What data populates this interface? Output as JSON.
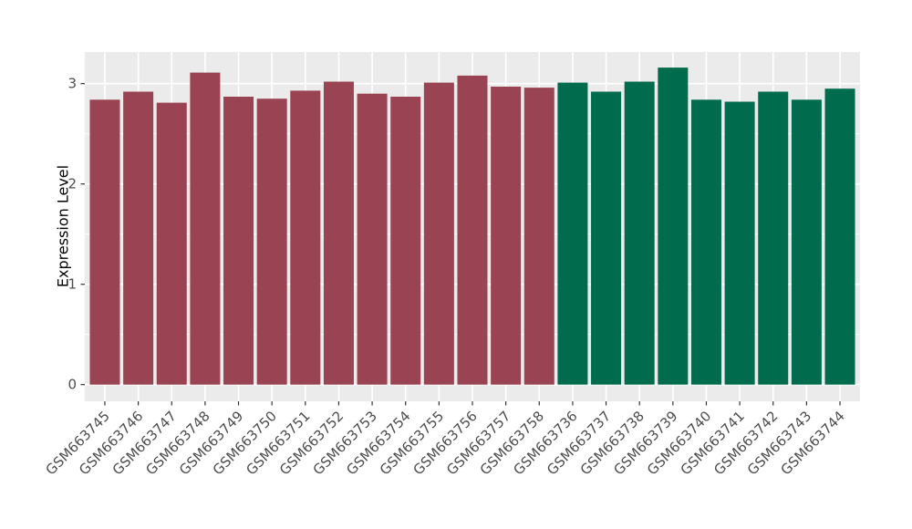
{
  "chart_data": {
    "type": "bar",
    "title": "",
    "xlabel": "",
    "ylabel": "Expression Level",
    "legend": "none",
    "panel_background": "#EBEBEB",
    "grid_color": "#FFFFFF",
    "grid": "on",
    "axis_text_color": "#4D4D4D",
    "tick_color": "#333333",
    "y_ticks": [
      "0",
      "1",
      "2",
      "3"
    ],
    "y_minor_ticks": [
      0.5,
      1.5,
      2.5
    ],
    "ylim": [
      -0.17,
      3.32
    ],
    "x_label_angle": 45,
    "categories": [
      "GSM663745",
      "GSM663746",
      "GSM663747",
      "GSM663748",
      "GSM663749",
      "GSM663750",
      "GSM663751",
      "GSM663752",
      "GSM663753",
      "GSM663754",
      "GSM663755",
      "GSM663756",
      "GSM663757",
      "GSM663758",
      "GSM663736",
      "GSM663737",
      "GSM663738",
      "GSM663739",
      "GSM663740",
      "GSM663741",
      "GSM663742",
      "GSM663743",
      "GSM663744"
    ],
    "values": [
      2.84,
      2.92,
      2.81,
      3.11,
      2.87,
      2.85,
      2.93,
      3.02,
      2.9,
      2.87,
      3.01,
      3.08,
      2.97,
      2.96,
      3.01,
      2.92,
      3.02,
      3.16,
      2.84,
      2.82,
      2.92,
      2.84,
      2.95
    ],
    "groups": [
      {
        "name": "GSM663745-GSM663758",
        "color": "#9A4352",
        "count": 14
      },
      {
        "name": "GSM663736-GSM663744",
        "color": "#006B4D",
        "count": 9
      }
    ],
    "bar_colors": [
      "#9A4352",
      "#9A4352",
      "#9A4352",
      "#9A4352",
      "#9A4352",
      "#9A4352",
      "#9A4352",
      "#9A4352",
      "#9A4352",
      "#9A4352",
      "#9A4352",
      "#9A4352",
      "#9A4352",
      "#9A4352",
      "#006B4D",
      "#006B4D",
      "#006B4D",
      "#006B4D",
      "#006B4D",
      "#006B4D",
      "#006B4D",
      "#006B4D",
      "#006B4D"
    ]
  }
}
